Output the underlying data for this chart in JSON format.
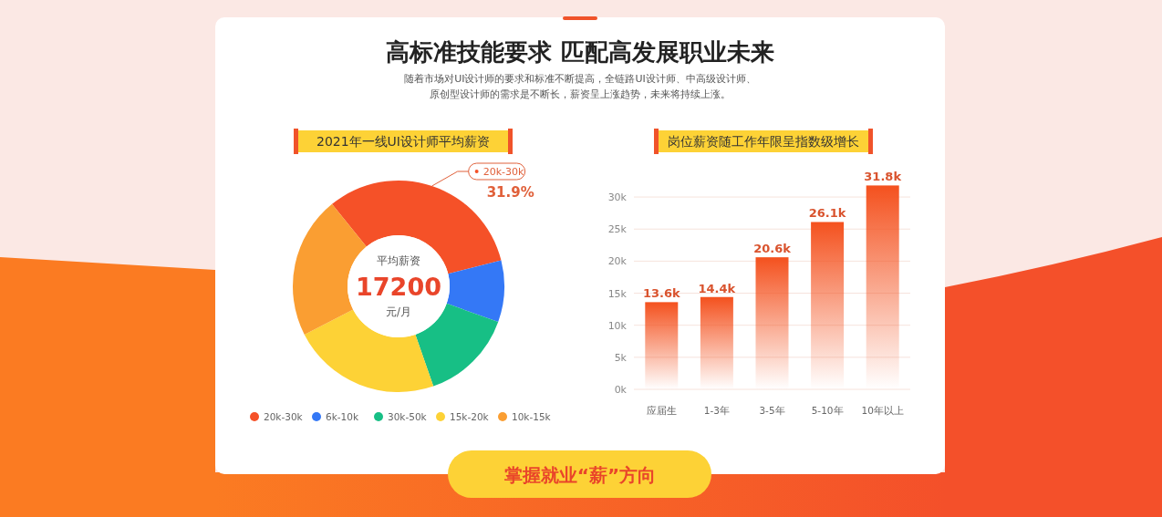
{
  "chart_data": [
    {
      "type": "donut",
      "title": "2021年一线UI设计师平均薪资",
      "categories": [
        "20k-30k",
        "6k-10k",
        "30k-50k",
        "15k-20k",
        "10k-15k"
      ],
      "values": [
        31.9,
        9.4,
        14.2,
        22.8,
        21.7
      ],
      "colors": [
        "#f55128",
        "#3478f6",
        "#17bf85",
        "#fdd236",
        "#fa9e32"
      ],
      "value_labels": [
        "31.9%",
        null,
        null,
        null,
        null
      ],
      "legend": "bottom",
      "annotations": [
        "高标准技能要求 匹配高发展职业未来",
        "随着市场对UI设计师的要求和标准不断提高，全链路UI设计师、中高级设计师、",
        "原创型设计师的需求是不断长，薪资呈上涨趋势，未来将持续上涨。",
        "平均薪资",
        "17200",
        "元/月",
        "掌握就业“薪”方向"
      ]
    },
    {
      "type": "bar",
      "title": "岗位薪资随工作年限呈指数级增长",
      "categories": [
        "应届生",
        "1-3年",
        "3-5年",
        "5-10年",
        "10年以上"
      ],
      "values": [
        13.6,
        14.4,
        20.6,
        26.1,
        31.8
      ],
      "value_labels": [
        "13.6k",
        "14.4k",
        "20.6k",
        "26.1k",
        "31.8k"
      ],
      "color": "#f4511e",
      "ylim": [
        0,
        32
      ],
      "yticks": [
        {
          "value": 0,
          "label": "0k"
        },
        {
          "value": 5,
          "label": "5k"
        },
        {
          "value": 10,
          "label": "10k"
        },
        {
          "value": 15,
          "label": "15k"
        },
        {
          "value": 20,
          "label": "20k"
        },
        {
          "value": 25,
          "label": "25k"
        },
        {
          "value": 30,
          "label": "30k"
        }
      ],
      "grid": "y"
    }
  ]
}
